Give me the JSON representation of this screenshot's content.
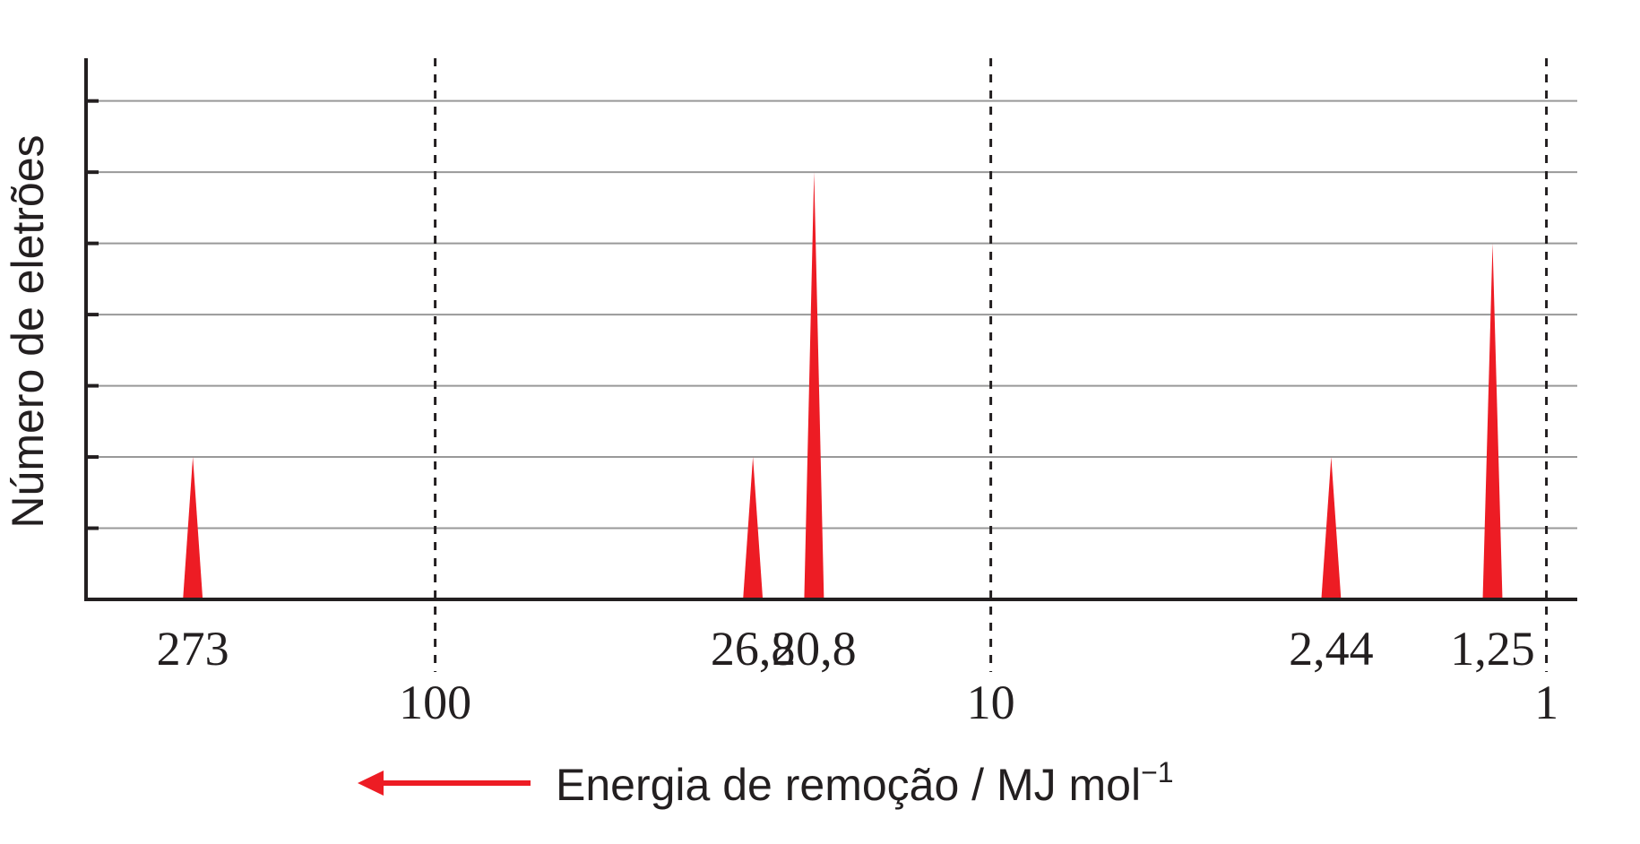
{
  "chart_data": {
    "type": "bar",
    "ylabel": "Número de eletrões",
    "xlabel": "Energia de remoção / MJ mol",
    "xlabel_superscript": "−1",
    "x_scale": "log",
    "x_direction": "decreasing",
    "xlim": [
      425,
      0.88
    ],
    "ylim": [
      0,
      7.6
    ],
    "y_gridlines": [
      1,
      2,
      3,
      4,
      5,
      6,
      7
    ],
    "x_major_ticks": [
      {
        "value": 100,
        "label": "100"
      },
      {
        "value": 10,
        "label": "10"
      },
      {
        "value": 1,
        "label": "1"
      }
    ],
    "series": [
      {
        "x": [
          273,
          26.8,
          20.8,
          2.44,
          1.25
        ],
        "labels": [
          "273",
          "26,8",
          "20,8",
          "2,44",
          "1,25"
        ],
        "values": [
          2,
          2,
          6,
          2,
          5
        ]
      }
    ],
    "colors": {
      "peak": "#ed1c24",
      "grid": "#999999",
      "axis": "#231f20",
      "arrow": "#ed1c24"
    },
    "grid": true,
    "legend": "none"
  }
}
